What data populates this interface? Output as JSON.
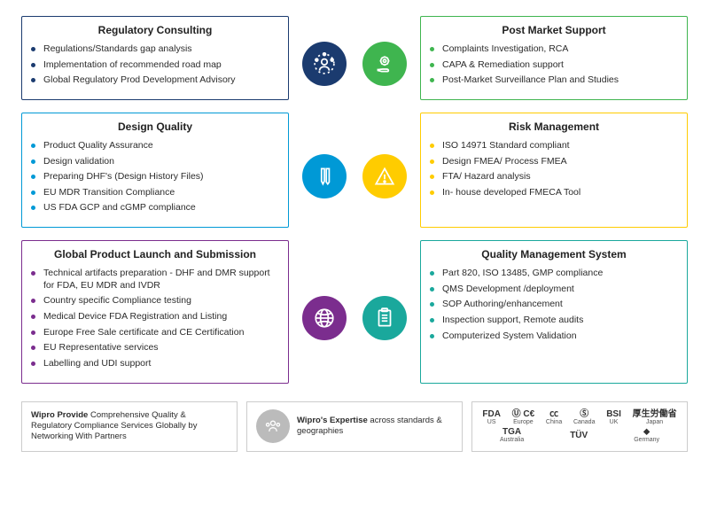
{
  "colors": {
    "navy": "#1b3b6f",
    "green": "#3fb54f",
    "blue": "#0099d6",
    "yellow": "#ffcc00",
    "purple": "#7b2d8e",
    "teal": "#1aa89c",
    "grey": "#a0a0a0"
  },
  "cards": {
    "regulatory": {
      "title": "Regulatory Consulting",
      "items": [
        "Regulations/Standards gap analysis",
        "Implementation of recommended road map",
        "Global Regulatory Prod Development Advisory"
      ]
    },
    "postmarket": {
      "title": "Post Market Support",
      "items": [
        "Complaints Investigation, RCA",
        "CAPA & Remediation support",
        "Post-Market Surveillance Plan and Studies"
      ]
    },
    "design": {
      "title": "Design Quality",
      "items": [
        "Product Quality Assurance",
        "Design validation",
        "Preparing DHF's (Design History Files)",
        "EU MDR Transition Compliance",
        "US FDA GCP and cGMP compliance"
      ]
    },
    "risk": {
      "title": "Risk Management",
      "items": [
        "ISO 14971 Standard compliant",
        "Design FMEA/ Process FMEA",
        "FTA/ Hazard analysis",
        "In- house developed FMECA Tool"
      ]
    },
    "launch": {
      "title": "Global Product Launch and Submission",
      "items": [
        "Technical artifacts preparation - DHF and DMR support for FDA, EU MDR and IVDR",
        "Country specific Compliance testing",
        "Medical Device FDA Registration and Listing",
        "Europe Free Sale certificate and CE Certification",
        "EU Representative services",
        "Labelling and UDI support"
      ]
    },
    "qms": {
      "title": "Quality Management System",
      "items": [
        "Part 820, ISO 13485, GMP compliance",
        "QMS Development /deployment",
        "SOP Authoring/enhancement",
        "Inspection support, Remote audits",
        "Computerized System Validation"
      ]
    }
  },
  "footer": {
    "box1": {
      "bold": "Wipro Provide",
      "rest": " Comprehensive Quality & Regulatory Compliance Services Globally by Networking With Partners"
    },
    "box2": {
      "bold": "Wipro's Expertise",
      "rest": " across standards & geographies"
    },
    "certs": [
      {
        "logo": "FDA",
        "sub": "US"
      },
      {
        "logo": "Ⓤ C€",
        "sub": "Europe"
      },
      {
        "logo": "㏄",
        "sub": "China"
      },
      {
        "logo": "Ⓢ",
        "sub": "Canada"
      },
      {
        "logo": "BSI",
        "sub": "UK"
      },
      {
        "logo": "厚生労働省",
        "sub": "Japan"
      },
      {
        "logo": "TGA",
        "sub": "Australia"
      },
      {
        "logo": "TÜV",
        "sub": ""
      },
      {
        "logo": "⬥",
        "sub": "Germany"
      }
    ]
  }
}
